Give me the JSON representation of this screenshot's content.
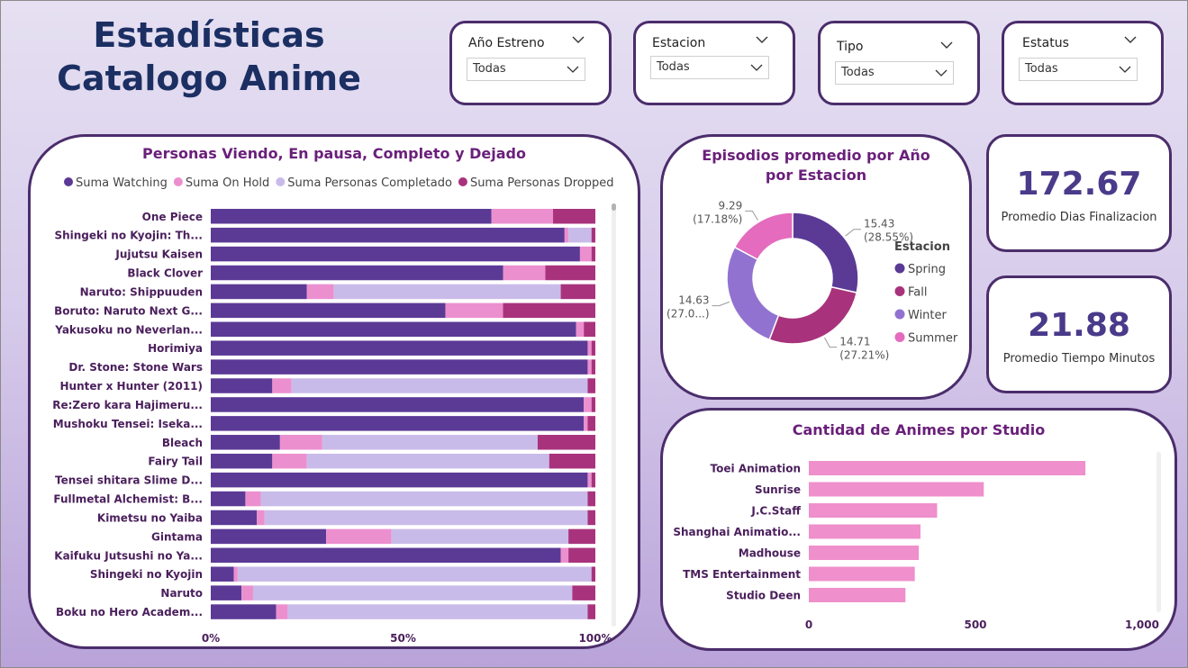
{
  "header": {
    "title_line1": "Estadísticas",
    "title_line2": "Catalogo Anime"
  },
  "slicers": [
    {
      "label": "Año Estreno",
      "value": "Todas"
    },
    {
      "label": "Estacion",
      "value": "Todas"
    },
    {
      "label": "Tipo",
      "value": "Todas"
    },
    {
      "label": "Estatus",
      "value": "Todas"
    }
  ],
  "kpis": [
    {
      "value": "172.67",
      "label": "Promedio Dias Finalizacion"
    },
    {
      "value": "21.88",
      "label": "Promedio Tiempo Minutos"
    }
  ],
  "colors": {
    "watching": "#5b3a96",
    "on_hold": "#ec8fcf",
    "completed": "#c9bbe9",
    "dropped": "#a8337c",
    "studio_bar": "#ef8fcb",
    "card_border": "#4b2d6b",
    "title_navy": "#1b2f63"
  },
  "chart_data": [
    {
      "type": "bar",
      "orientation": "horizontal-stacked-100",
      "title": "Personas Viendo, En pausa, Completo y Dejado",
      "categories": [
        "One Piece",
        "Shingeki no Kyojin: Th...",
        "Jujutsu Kaisen",
        "Black Clover",
        "Naruto: Shippuuden",
        "Boruto: Naruto Next G...",
        "Yakusoku no Neverlan...",
        "Horimiya",
        "Dr. Stone: Stone Wars",
        "Hunter x Hunter (2011)",
        "Re:Zero kara Hajimeru...",
        "Mushoku Tensei: Iseka...",
        "Bleach",
        "Fairy Tail",
        "Tensei shitara Slime D...",
        "Fullmetal Alchemist: B...",
        "Kimetsu no Yaiba",
        "Gintama",
        "Kaifuku Jutsushi no Ya...",
        "Shingeki no Kyojin",
        "Naruto",
        "Boku no Hero Academ..."
      ],
      "series": [
        {
          "name": "Suma Watching",
          "values": [
            73,
            92,
            96,
            76,
            25,
            61,
            95,
            98,
            98,
            16,
            97,
            97,
            18,
            16,
            98,
            9,
            12,
            30,
            91,
            6,
            8,
            17
          ]
        },
        {
          "name": "Suma On Hold",
          "values": [
            16,
            1,
            3,
            11,
            7,
            15,
            2,
            1,
            1,
            5,
            2,
            1,
            11,
            9,
            1,
            4,
            2,
            17,
            2,
            1,
            3,
            3
          ]
        },
        {
          "name": "Suma Personas Completado",
          "values": [
            0,
            6,
            0,
            0,
            59,
            0,
            0,
            0,
            0,
            77,
            0,
            0,
            56,
            63,
            0,
            85,
            84,
            46,
            0,
            92,
            83,
            78
          ]
        },
        {
          "name": "Suma Personas Dropped",
          "values": [
            11,
            1,
            1,
            13,
            9,
            24,
            3,
            1,
            1,
            2,
            1,
            2,
            15,
            12,
            1,
            2,
            2,
            7,
            7,
            1,
            6,
            2
          ]
        }
      ],
      "xlim": [
        0,
        100
      ],
      "xticks": [
        "0%",
        "50%",
        "100%"
      ],
      "legend": "top"
    },
    {
      "type": "pie",
      "variant": "donut",
      "title": "Episodios promedio por Año por Estacion",
      "legend_title": "Estacion",
      "labels": [
        "Spring",
        "Fall",
        "Winter",
        "Summer"
      ],
      "values": [
        15.43,
        14.71,
        14.63,
        9.29
      ],
      "data_labels": [
        {
          "value": "15.43",
          "pct": "(28.55%)"
        },
        {
          "value": "14.71",
          "pct": "(27.21%)"
        },
        {
          "value": "14.63",
          "pct": "(27.0...)"
        },
        {
          "value": "9.29",
          "pct": "(17.18%)"
        }
      ],
      "colors": [
        "#5b3a96",
        "#a8337c",
        "#9272d1",
        "#e46bbd"
      ],
      "legend": "right"
    },
    {
      "type": "bar",
      "orientation": "horizontal",
      "title": "Cantidad de Animes por Studio",
      "categories": [
        "Toei Animation",
        "Sunrise",
        "J.C.Staff",
        "Shanghai Animatio...",
        "Madhouse",
        "TMS Entertainment",
        "Studio Deen"
      ],
      "values": [
        830,
        525,
        385,
        335,
        330,
        318,
        290
      ],
      "xlim": [
        0,
        1000
      ],
      "xticks": [
        "0",
        "500",
        "1,000"
      ]
    }
  ]
}
